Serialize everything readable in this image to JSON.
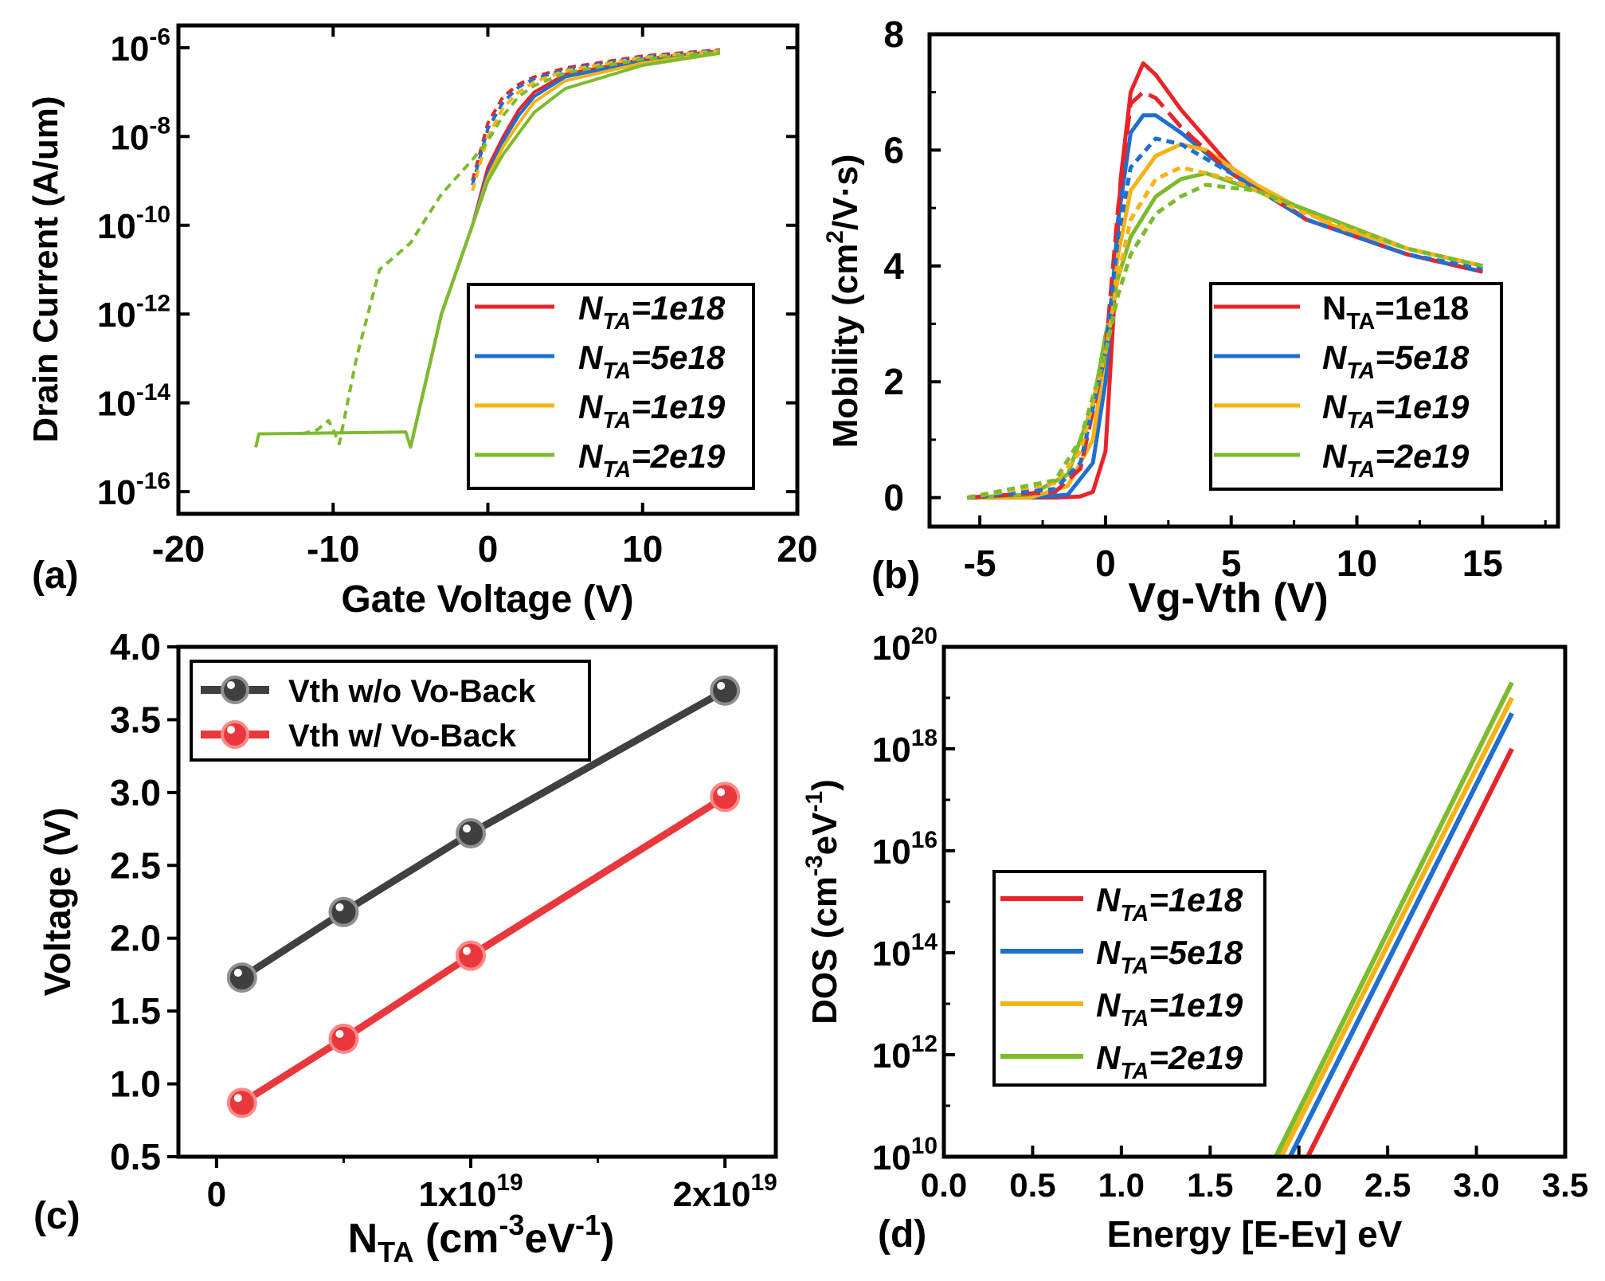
{
  "panels": {
    "a": {
      "label": "(a)",
      "xlabel": "Gate Voltage (V)",
      "ylabel": "Drain Current (A/um)",
      "xticks": [
        "-20",
        "-10",
        "0",
        "10",
        "20"
      ],
      "ytick_mantissa": "10",
      "ytick_exponents": [
        "-16",
        "-14",
        "-12",
        "-10",
        "-8",
        "-6"
      ],
      "legend": [
        {
          "pre": "N",
          "sub": "TA",
          "post": "=1e18",
          "color": "#e8242b"
        },
        {
          "pre": "N",
          "sub": "TA",
          "post": "=5e18",
          "color": "#1f6fd1"
        },
        {
          "pre": "N",
          "sub": "TA",
          "post": "=1e19",
          "color": "#f5b314"
        },
        {
          "pre": "N",
          "sub": "TA",
          "post": "=2e19",
          "color": "#7dbb2e"
        }
      ]
    },
    "b": {
      "label": "(b)",
      "xlabel": "Vg-Vth (V)",
      "ylabel_pre": "Mobility (cm",
      "ylabel_sup": "2",
      "ylabel_post": "/V·s)",
      "xticks": [
        "-5",
        "0",
        "5",
        "10",
        "15"
      ],
      "yticks": [
        "0",
        "2",
        "4",
        "6",
        "8"
      ],
      "legend": [
        {
          "pre": "N",
          "sub": "TA",
          "post": "=1e18",
          "color": "#e8242b"
        },
        {
          "pre": "N",
          "sub": "TA",
          "post": "=5e18",
          "color": "#1f6fd1"
        },
        {
          "pre": "N",
          "sub": "TA",
          "post": "=1e19",
          "color": "#f5b314"
        },
        {
          "pre": "N",
          "sub": "TA",
          "post": "=2e19",
          "color": "#7dbb2e"
        }
      ]
    },
    "c": {
      "label": "(c)",
      "xlabel_pre": "N",
      "xlabel_sub": "TA",
      "xlabel_mid": " (cm",
      "xlabel_sup1": "-3",
      "xlabel_mid2": "eV",
      "xlabel_sup2": "-1",
      "xlabel_post": ")",
      "ylabel": "Voltage (V)",
      "xticks": [
        {
          "pre": "0",
          "sup": ""
        },
        {
          "pre": "1x10",
          "sup": "19"
        },
        {
          "pre": "2x10",
          "sup": "19"
        }
      ],
      "yticks": [
        "0.5",
        "1.0",
        "1.5",
        "2.0",
        "2.5",
        "3.0",
        "3.5",
        "4.0"
      ],
      "legend": [
        {
          "text": "Vth w/o Vo-Back",
          "color": "#404040"
        },
        {
          "text": "Vth w/   Vo-Back",
          "color": "#e8383d"
        }
      ]
    },
    "d": {
      "label": "(d)",
      "xlabel": "Energy [E-Ev] eV",
      "ylabel_pre": "DOS (cm",
      "ylabel_sup1": "-3",
      "ylabel_mid": "eV",
      "ylabel_sup2": "-1",
      "ylabel_post": ")",
      "xticks": [
        "0.0",
        "0.5",
        "1.0",
        "1.5",
        "2.0",
        "2.5",
        "3.0",
        "3.5"
      ],
      "ytick_mantissa": "10",
      "ytick_exponents": [
        "10",
        "12",
        "14",
        "16",
        "18",
        "20"
      ],
      "legend": [
        {
          "pre": "N",
          "sub": "TA",
          "post": "=1e18",
          "color": "#e8242b"
        },
        {
          "pre": "N",
          "sub": "TA",
          "post": "=5e18",
          "color": "#1f6fd1"
        },
        {
          "pre": "N",
          "sub": "TA",
          "post": "=1e19",
          "color": "#f5b314"
        },
        {
          "pre": "N",
          "sub": "TA",
          "post": "=2e19",
          "color": "#7dbb2e"
        }
      ]
    }
  },
  "chart_data": [
    {
      "panel": "a",
      "type": "line",
      "title": "",
      "xlabel": "Gate Voltage (V)",
      "ylabel": "Drain Current (A/um)",
      "xlim": [
        -20,
        20
      ],
      "ylim": [
        1e-16,
        1e-05
      ],
      "yscale": "log",
      "grid": false,
      "legend_position": "bottom-right",
      "series": [
        {
          "name": "NTA=1e18",
          "color": "#e8242b",
          "style": "solid",
          "x": [
            -5,
            -3,
            -1,
            0,
            1,
            2,
            3,
            5,
            10,
            15
          ],
          "y": [
            1e-15,
            1e-12,
            1e-10,
            2e-09,
            1e-08,
            4e-08,
            1e-07,
            2.5e-07,
            5.5e-07,
            8.5e-07
          ]
        },
        {
          "name": "NTA=5e18",
          "color": "#1f6fd1",
          "style": "solid",
          "x": [
            -5,
            -3,
            -1,
            0,
            1,
            2,
            3,
            5,
            10,
            15
          ],
          "y": [
            1e-15,
            1e-12,
            1e-10,
            1.5e-09,
            8e-09,
            3e-08,
            8e-08,
            2.2e-07,
            5e-07,
            8e-07
          ]
        },
        {
          "name": "NTA=1e19",
          "color": "#f5b314",
          "style": "solid",
          "x": [
            -5,
            -3,
            -1,
            0,
            1,
            2,
            3,
            5,
            10,
            15
          ],
          "y": [
            1e-15,
            1e-12,
            1e-10,
            1.2e-09,
            6e-09,
            2e-08,
            6e-08,
            1.8e-07,
            4.5e-07,
            7.8e-07
          ]
        },
        {
          "name": "NTA=2e19",
          "color": "#7dbb2e",
          "style": "solid",
          "x": [
            -15,
            -14.8,
            -5.3,
            -5,
            -3,
            -1,
            0,
            1,
            2,
            3,
            5,
            10,
            15
          ],
          "y": [
            1e-15,
            2e-15,
            2.2e-15,
            1e-15,
            1e-12,
            1e-10,
            1e-09,
            4e-09,
            1.2e-08,
            3.5e-08,
            1.2e-07,
            4e-07,
            7.5e-07
          ]
        },
        {
          "name": "NTA=1e18 w/ Vo-Back",
          "color": "#e8242b",
          "style": "dotted",
          "x": [
            -1,
            0,
            1,
            2,
            3,
            5,
            10,
            15
          ],
          "y": [
            1e-09,
            2e-08,
            8e-08,
            1.5e-07,
            2.2e-07,
            3.5e-07,
            6.5e-07,
            9e-07
          ]
        },
        {
          "name": "NTA=5e18 w/ Vo-Back",
          "color": "#1f6fd1",
          "style": "dotted",
          "x": [
            -1,
            0,
            1,
            2,
            3,
            5,
            10,
            15
          ],
          "y": [
            8e-10,
            1.5e-08,
            6e-08,
            1.3e-07,
            2e-07,
            3.2e-07,
            6.2e-07,
            8.8e-07
          ]
        },
        {
          "name": "NTA=1e19 w/ Vo-Back",
          "color": "#f5b314",
          "style": "dotted",
          "x": [
            -1,
            0,
            1,
            2,
            3,
            5,
            10,
            15
          ],
          "y": [
            6e-10,
            1e-08,
            4.5e-08,
            1e-07,
            1.7e-07,
            3e-07,
            6e-07,
            8.5e-07
          ]
        },
        {
          "name": "NTA=2e19 w/ Vo-Back",
          "color": "#7dbb2e",
          "style": "dotted",
          "x": [
            -12,
            -11,
            -10.3,
            -10,
            -9.6,
            -8.5,
            -7,
            -5,
            -3,
            -1,
            0,
            1,
            2,
            3,
            5,
            10,
            15
          ],
          "y": [
            2e-15,
            2.5e-15,
            4e-15,
            2.5e-15,
            1.2e-15,
            1e-13,
            1e-11,
            4e-11,
            5e-10,
            3e-09,
            8e-09,
            3e-08,
            8e-08,
            1.4e-07,
            2.7e-07,
            5.5e-07,
            8e-07
          ]
        }
      ]
    },
    {
      "panel": "b",
      "type": "line",
      "title": "",
      "xlabel": "Vg-Vth (V)",
      "ylabel": "Mobility (cm2/V·s)",
      "xlim": [
        -7,
        18
      ],
      "ylim": [
        -0.5,
        8
      ],
      "grid": false,
      "legend_position": "bottom-right",
      "series": [
        {
          "name": "NTA=1e18",
          "color": "#e8242b",
          "style": "solid",
          "x": [
            -5.5,
            -2,
            -1,
            -0.5,
            0,
            0.3,
            0.6,
            1,
            1.5,
            2,
            3,
            5,
            8,
            12,
            15
          ],
          "y": [
            0,
            0,
            0.02,
            0.1,
            0.8,
            3,
            5.5,
            7,
            7.5,
            7.3,
            6.7,
            5.7,
            4.8,
            4.2,
            3.9
          ]
        },
        {
          "name": "NTA=5e18",
          "color": "#1f6fd1",
          "style": "solid",
          "x": [
            -5.5,
            -3,
            -1.5,
            -0.5,
            0,
            0.5,
            1,
            1.5,
            2,
            3,
            5,
            8,
            12,
            15
          ],
          "y": [
            0,
            0,
            0.05,
            0.6,
            2,
            4.8,
            6.3,
            6.6,
            6.6,
            6.3,
            5.6,
            4.8,
            4.2,
            3.9
          ]
        },
        {
          "name": "NTA=1e19",
          "color": "#f5b314",
          "style": "solid",
          "x": [
            -5.5,
            -3,
            -1.5,
            -0.5,
            0,
            0.5,
            1,
            2,
            3,
            4,
            6,
            9,
            12,
            15
          ],
          "y": [
            0,
            0,
            0.2,
            1,
            2.5,
            4.2,
            5.3,
            5.9,
            6.1,
            6,
            5.4,
            4.7,
            4.3,
            4
          ]
        },
        {
          "name": "NTA=2e19",
          "color": "#7dbb2e",
          "style": "solid",
          "x": [
            -5.5,
            -3,
            -1.5,
            -0.5,
            0,
            0.5,
            1,
            2,
            3,
            4,
            6,
            9,
            12,
            15
          ],
          "y": [
            0,
            0.05,
            0.4,
            1.6,
            2.8,
            3.8,
            4.5,
            5.2,
            5.5,
            5.6,
            5.3,
            4.8,
            4.3,
            4
          ]
        },
        {
          "name": "NTA=1e18 w/ Vo-Back",
          "color": "#e8242b",
          "style": "dashed",
          "x": [
            -5.5,
            -2,
            -1,
            0,
            0.5,
            1,
            1.5,
            2,
            3,
            5,
            8,
            12,
            15
          ],
          "y": [
            0,
            0.1,
            0.5,
            2.5,
            5,
            6.8,
            7,
            6.9,
            6.4,
            5.6,
            4.8,
            4.2,
            3.9
          ]
        },
        {
          "name": "NTA=5e18 w/ Vo-Back",
          "color": "#1f6fd1",
          "style": "dotted",
          "x": [
            -5.5,
            -2,
            -1,
            0,
            0.5,
            1,
            2,
            3,
            5,
            8,
            12,
            15
          ],
          "y": [
            0,
            0.15,
            0.6,
            2.5,
            4.5,
            5.7,
            6.2,
            6.1,
            5.6,
            4.8,
            4.2,
            3.95
          ]
        },
        {
          "name": "NTA=1e19 w/ Vo-Back",
          "color": "#f5b314",
          "style": "dotted",
          "x": [
            -5.5,
            -2,
            -1,
            0,
            0.5,
            1,
            2,
            3,
            5,
            8,
            12,
            15
          ],
          "y": [
            0,
            0.25,
            0.8,
            2.5,
            3.8,
            4.8,
            5.5,
            5.7,
            5.5,
            4.9,
            4.3,
            4
          ]
        },
        {
          "name": "NTA=2e19 w/ Vo-Back",
          "color": "#7dbb2e",
          "style": "dotted",
          "x": [
            -5.5,
            -2,
            -1,
            0,
            0.5,
            1,
            2,
            3,
            4,
            6,
            9,
            12,
            15
          ],
          "y": [
            0,
            0.3,
            1,
            2.5,
            3.5,
            4.2,
            4.9,
            5.2,
            5.4,
            5.3,
            4.8,
            4.3,
            4
          ]
        }
      ]
    },
    {
      "panel": "c",
      "type": "line",
      "title": "",
      "xlabel": "NTA (cm-3eV-1)",
      "ylabel": "Voltage (V)",
      "xlim": [
        -1.5e+18,
        2.2e+19
      ],
      "ylim": [
        0.5,
        4.0
      ],
      "grid": false,
      "legend_position": "top-left",
      "series": [
        {
          "name": "Vth w/o Vo-Back",
          "color": "#404040",
          "x": [
            1e+18,
            5e+18,
            1e+19,
            2e+19
          ],
          "y": [
            1.73,
            2.18,
            2.72,
            3.7
          ]
        },
        {
          "name": "Vth w/   Vo-Back",
          "color": "#e8383d",
          "x": [
            1e+18,
            5e+18,
            1e+19,
            2e+19
          ],
          "y": [
            0.87,
            1.31,
            1.88,
            2.97
          ]
        }
      ]
    },
    {
      "panel": "d",
      "type": "line",
      "title": "",
      "xlabel": "Energy [E-Ev] eV",
      "ylabel": "DOS (cm-3eV-1)",
      "xlim": [
        0.0,
        3.5
      ],
      "ylim": [
        10000000000.0,
        1e+20
      ],
      "yscale": "log",
      "grid": false,
      "legend_position": "center-left",
      "series": [
        {
          "name": "NTA=1e18",
          "color": "#e8242b",
          "x": [
            2.05,
            3.2
          ],
          "y": [
            10000000000.0,
            1e+18
          ]
        },
        {
          "name": "NTA=5e18",
          "color": "#1f6fd1",
          "x": [
            1.95,
            3.2
          ],
          "y": [
            10000000000.0,
            5e+18
          ]
        },
        {
          "name": "NTA=1e19",
          "color": "#f5b314",
          "x": [
            1.9,
            3.2
          ],
          "y": [
            10000000000.0,
            1e+19
          ]
        },
        {
          "name": "NTA=2e19",
          "color": "#7dbb2e",
          "x": [
            1.87,
            3.2
          ],
          "y": [
            10000000000.0,
            2e+19
          ]
        }
      ]
    }
  ]
}
